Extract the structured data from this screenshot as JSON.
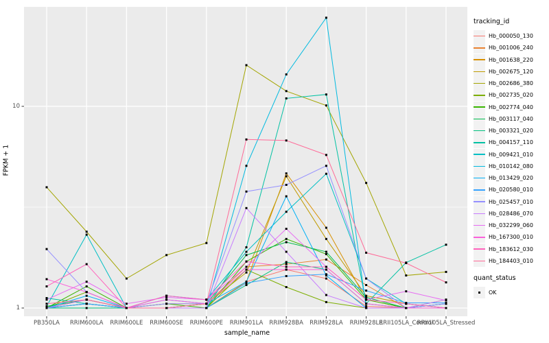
{
  "chart_data": {
    "type": "line",
    "xlabel": "sample_name",
    "ylabel": "FPKM + 1",
    "y_scale": "log10",
    "y_ticks": [
      {
        "value": 1,
        "label": "1"
      },
      {
        "value": 10,
        "label": "10"
      }
    ],
    "y_minor_ticks": [
      3.162
    ],
    "panel_bg": "#EBEBEB",
    "grid_color": "#FFFFFF",
    "point_shape": "filled-square",
    "point_color": "#000000",
    "categories": [
      "PB350LA",
      "RRIM600LA",
      "RRIM600LE",
      "RRIM600SE",
      "RRIM600PE",
      "RRIM901LA",
      "RRIM928BA",
      "RRIM928LA",
      "RRIM928LE",
      "RRII105LA_Control",
      "RRII105LA_Stressed"
    ],
    "series": [
      {
        "name": "Hb_000050_130",
        "color": "#F8766D",
        "values": [
          1.0,
          1.05,
          1.0,
          1.0,
          1.0,
          1.35,
          1.55,
          1.4,
          1.02,
          1.0,
          1.0
        ]
      },
      {
        "name": "Hb_001006_240",
        "color": "#EA8331",
        "values": [
          1.0,
          1.1,
          1.0,
          1.05,
          1.05,
          1.6,
          1.65,
          1.74,
          1.3,
          1.0,
          1.05
        ]
      },
      {
        "name": "Hb_001638_220",
        "color": "#D89000",
        "values": [
          1.0,
          1.05,
          1.0,
          1.0,
          1.0,
          1.35,
          4.65,
          2.5,
          1.1,
          1.0,
          1.0
        ]
      },
      {
        "name": "Hb_002675_120",
        "color": "#C09B00",
        "values": [
          1.0,
          1.1,
          1.0,
          1.0,
          1.05,
          1.5,
          4.5,
          2.2,
          1.15,
          1.05,
          1.0
        ]
      },
      {
        "name": "Hb_002686_380",
        "color": "#A3A500",
        "values": [
          3.97,
          2.39,
          1.4,
          1.83,
          2.1,
          16.0,
          11.9,
          10.1,
          4.17,
          1.45,
          1.51
        ]
      },
      {
        "name": "Hb_002735_020",
        "color": "#7CAE00",
        "values": [
          1.0,
          1.2,
          1.0,
          1.0,
          1.0,
          1.55,
          1.27,
          1.07,
          1.0,
          1.0,
          1.1
        ]
      },
      {
        "name": "Hb_002774_040",
        "color": "#39B600",
        "values": [
          1.0,
          1.28,
          1.0,
          1.05,
          1.0,
          1.7,
          2.2,
          1.85,
          1.1,
          1.0,
          1.0
        ]
      },
      {
        "name": "Hb_003117_040",
        "color": "#00BB4E",
        "values": [
          1.02,
          1.1,
          1.0,
          1.0,
          1.05,
          1.83,
          2.12,
          1.9,
          1.13,
          1.0,
          1.05
        ]
      },
      {
        "name": "Hb_003321_020",
        "color": "#00BF7D",
        "values": [
          1.0,
          1.0,
          1.0,
          1.0,
          1.0,
          1.3,
          1.69,
          1.55,
          1.05,
          1.0,
          1.0
        ]
      },
      {
        "name": "Hb_004157_110",
        "color": "#00C1A3",
        "values": [
          1.12,
          1.05,
          1.0,
          1.0,
          1.0,
          2.0,
          10.95,
          11.45,
          1.05,
          1.68,
          2.06
        ]
      },
      {
        "name": "Hb_009421_010",
        "color": "#00BFC4",
        "values": [
          1.02,
          2.31,
          1.0,
          1.15,
          1.1,
          1.9,
          3.0,
          4.63,
          1.4,
          1.05,
          1.0
        ]
      },
      {
        "name": "Hb_010142_080",
        "color": "#00BAE0",
        "values": [
          1.0,
          1.05,
          1.0,
          1.0,
          1.0,
          5.07,
          14.4,
          27.5,
          1.0,
          1.0,
          1.05
        ]
      },
      {
        "name": "Hb_013429_020",
        "color": "#00B0F6",
        "values": [
          1.0,
          1.15,
          1.0,
          1.1,
          1.05,
          1.35,
          3.58,
          1.45,
          1.0,
          1.0,
          1.0
        ]
      },
      {
        "name": "Hb_020580_010",
        "color": "#35A2FF",
        "values": [
          1.0,
          1.05,
          1.0,
          1.0,
          1.0,
          1.33,
          1.44,
          1.47,
          1.22,
          1.06,
          1.06
        ]
      },
      {
        "name": "Hb_025457_010",
        "color": "#9590FF",
        "values": [
          1.96,
          1.2,
          1.0,
          1.05,
          1.05,
          3.78,
          4.08,
          5.07,
          1.4,
          1.0,
          1.05
        ]
      },
      {
        "name": "Hb_028486_070",
        "color": "#C77CFF",
        "values": [
          1.0,
          1.1,
          1.0,
          1.0,
          1.0,
          3.13,
          1.9,
          1.16,
          1.0,
          1.0,
          1.1
        ]
      },
      {
        "name": "Hb_032299_060",
        "color": "#E76BF3",
        "values": [
          1.1,
          1.35,
          1.05,
          1.13,
          1.1,
          1.6,
          2.47,
          1.6,
          1.1,
          1.21,
          1.09
        ]
      },
      {
        "name": "Hb_167300_010",
        "color": "#FA62DB",
        "values": [
          1.39,
          1.2,
          1.0,
          1.1,
          1.05,
          1.55,
          1.55,
          1.55,
          1.05,
          1.0,
          1.0
        ]
      },
      {
        "name": "Hb_183612_030",
        "color": "#FF62BC",
        "values": [
          1.28,
          1.65,
          1.0,
          1.15,
          1.1,
          1.7,
          1.6,
          1.6,
          1.1,
          1.05,
          1.0
        ]
      },
      {
        "name": "Hb_184403_010",
        "color": "#FF6A98",
        "values": [
          1.05,
          1.1,
          1.0,
          1.0,
          1.05,
          6.85,
          6.77,
          5.74,
          1.88,
          1.67,
          1.34
        ]
      }
    ]
  },
  "legend": {
    "tracking_title": "tracking_id",
    "quant_title": "quant_status",
    "quant_items": [
      {
        "label": "OK"
      }
    ]
  }
}
